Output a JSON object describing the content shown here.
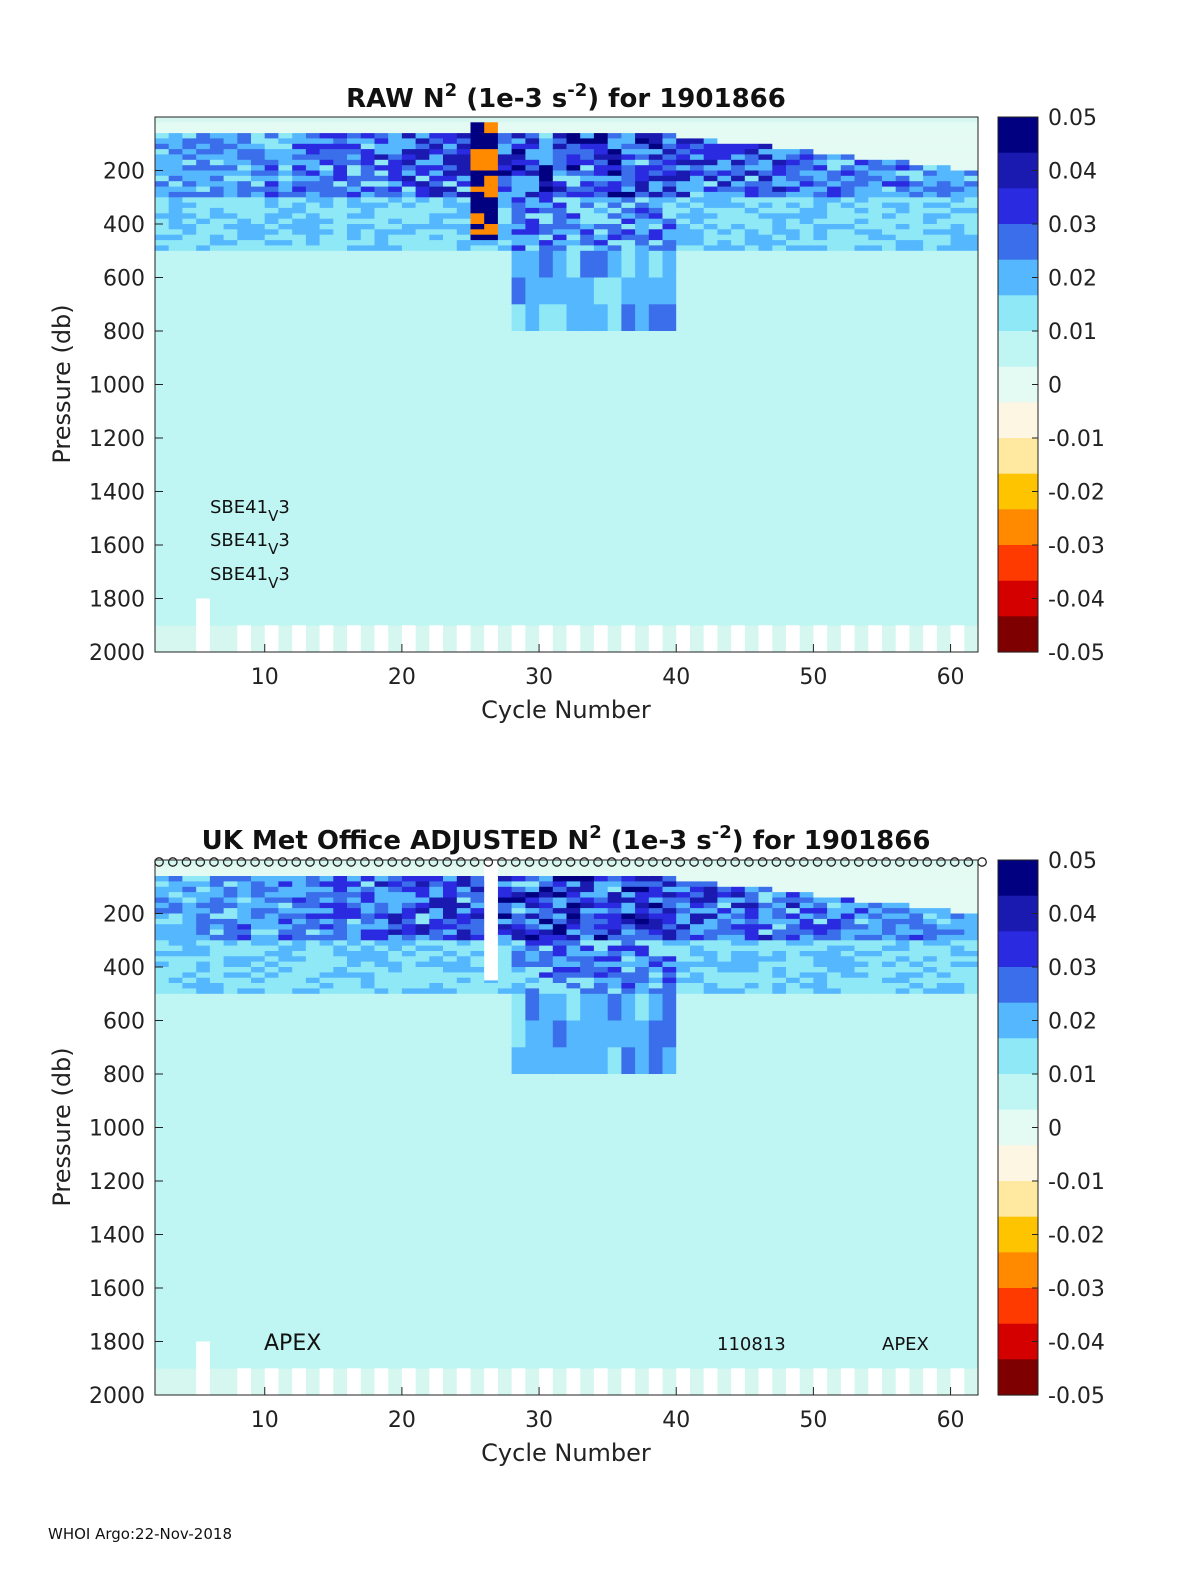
{
  "footer": "WHOI Argo:22-Nov-2018",
  "colors": {
    "colormap": [
      "#7f0000",
      "#d40000",
      "#ff3a00",
      "#ff8a00",
      "#ffc400",
      "#ffe8a0",
      "#fdf6e3",
      "#e4fbf3",
      "#bff5f3",
      "#8ee8f6",
      "#55b8ff",
      "#3a6eea",
      "#2a2ae0",
      "#1a1ab0",
      "#000080"
    ],
    "background_fill": "#d6f7f0",
    "gap_fill": "#ffffff"
  },
  "chart_data": [
    {
      "type": "heatmap",
      "title": {
        "pre": "RAW N",
        "sup1": "2",
        "mid": " (1e-3 s",
        "sup2": "-2",
        "post": ") for 1901866"
      },
      "xlabel": "Cycle Number",
      "ylabel": "Pressure (db)",
      "xlim": [
        2,
        62
      ],
      "ylim": [
        2000,
        0
      ],
      "xticks": [
        10,
        20,
        30,
        40,
        50,
        60
      ],
      "yticks": [
        200,
        400,
        600,
        800,
        1000,
        1200,
        1400,
        1600,
        1800,
        2000
      ],
      "colorbar": {
        "ticks": [
          "0.05",
          "0.04",
          "0.03",
          "0.02",
          "0.01",
          "0",
          "-0.01",
          "-0.02",
          "-0.03",
          "-0.04",
          "-0.05"
        ],
        "range": [
          -0.05,
          0.05
        ]
      },
      "annotations": [
        {
          "base": "SBE41",
          "sub": "V",
          "tail": "3"
        },
        {
          "base": "SBE41",
          "sub": "V",
          "tail": "3"
        },
        {
          "base": "SBE41",
          "sub": "V",
          "tail": "3"
        }
      ],
      "gap_columns": [
        5
      ],
      "surface_markers": false
    },
    {
      "type": "heatmap",
      "title": {
        "pre": "UK Met Office  ADJUSTED N",
        "sup1": "2",
        "mid": " (1e-3 s",
        "sup2": "-2",
        "post": ") for 1901866"
      },
      "xlabel": "Cycle Number",
      "ylabel": "Pressure (db)",
      "xlim": [
        2,
        62
      ],
      "ylim": [
        2000,
        0
      ],
      "xticks": [
        10,
        20,
        30,
        40,
        50,
        60
      ],
      "yticks": [
        200,
        400,
        600,
        800,
        1000,
        1200,
        1400,
        1600,
        1800,
        2000
      ],
      "colorbar": {
        "ticks": [
          "0.05",
          "0.04",
          "0.03",
          "0.02",
          "0.01",
          "0",
          "-0.01",
          "-0.02",
          "-0.03",
          "-0.04",
          "-0.05"
        ],
        "range": [
          -0.05,
          0.05
        ]
      },
      "annotations": [
        "APEX",
        "110813",
        "APEX"
      ],
      "gap_columns": [
        5,
        26
      ],
      "surface_markers": true
    }
  ]
}
